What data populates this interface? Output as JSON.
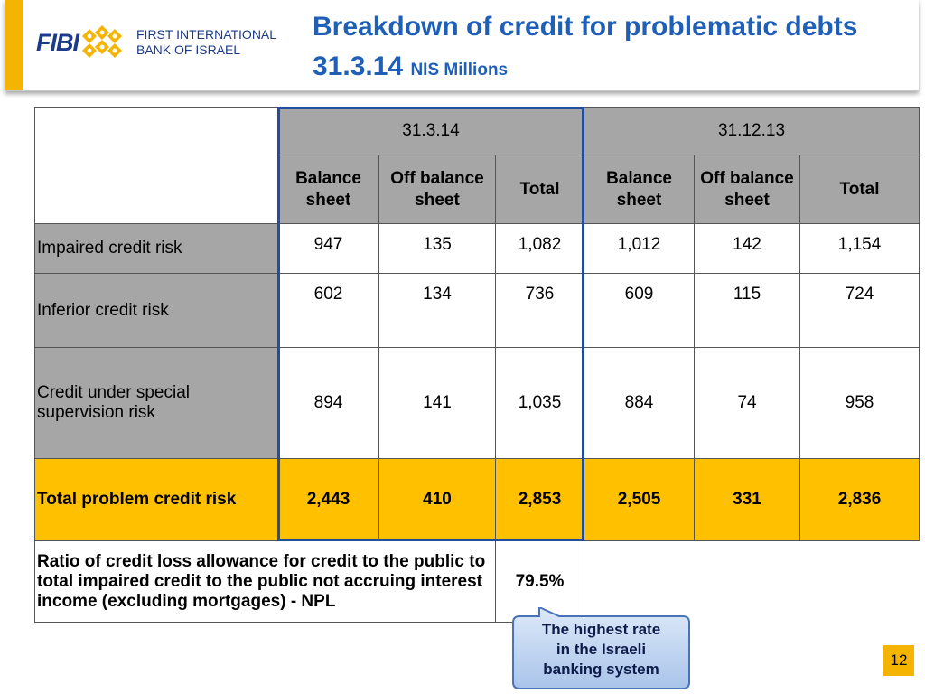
{
  "logo": {
    "abbrev": "FIBI",
    "bank_name": "FIRST INTERNATIONAL\nBANK OF ISRAEL"
  },
  "title": {
    "main": "Breakdown of credit for problematic debts 31.3.14",
    "unit": "NIS Millions"
  },
  "table": {
    "periods": [
      "31.3.14",
      "31.12.13"
    ],
    "subheaders": [
      "Balance sheet",
      "Off  balance sheet",
      "Total",
      "Balance sheet",
      "Off  balance sheet",
      "Total"
    ],
    "rows": [
      {
        "label": "Impaired credit risk",
        "values": [
          "947",
          "135",
          "1,082",
          "1,012",
          "142",
          "1,154"
        ]
      },
      {
        "label": "Inferior credit risk",
        "values": [
          "602",
          "134",
          "736",
          "609",
          "115",
          "724"
        ]
      },
      {
        "label": "Credit under special supervision risk",
        "values": [
          "894",
          "141",
          "1,035",
          "884",
          "74",
          "958"
        ]
      },
      {
        "label": "Total problem credit risk",
        "values": [
          "2,443",
          "410",
          "2,853",
          "2,505",
          "331",
          "2,836"
        ]
      }
    ],
    "ratio": {
      "label": "Ratio of credit loss allowance for credit to the public to total impaired credit to the public not accruing interest income (excluding mortgages) - NPL",
      "value": "79.5%"
    }
  },
  "callout": {
    "text": "The highest rate\nin the Israeli\nbanking system"
  },
  "page_number": "12",
  "colors": {
    "title_blue": "#1f5fb8",
    "gold": "#ffc000",
    "header_gray": "#a6a6a6",
    "box_blue": "#1f4e9c"
  }
}
